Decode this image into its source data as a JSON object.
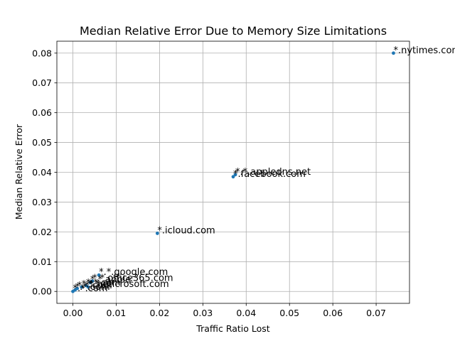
{
  "chart_data": {
    "type": "scatter",
    "title": "Median Relative Error Due to Memory Size Limitations",
    "xlabel": "Traffic Ratio Lost",
    "ylabel": "Median Relative Error",
    "xlim": [
      -0.0037,
      0.0777
    ],
    "ylim": [
      -0.004,
      0.084
    ],
    "xticks": [
      0.0,
      0.01,
      0.02,
      0.03,
      0.04,
      0.05,
      0.06,
      0.07
    ],
    "xtick_labels": [
      "0.00",
      "0.01",
      "0.02",
      "0.03",
      "0.04",
      "0.05",
      "0.06",
      "0.07"
    ],
    "yticks": [
      0.0,
      0.01,
      0.02,
      0.03,
      0.04,
      0.05,
      0.06,
      0.07,
      0.08
    ],
    "ytick_labels": [
      "0.00",
      "0.01",
      "0.02",
      "0.03",
      "0.04",
      "0.05",
      "0.06",
      "0.07",
      "0.08"
    ],
    "grid": true,
    "marker_color": "#1f77b4",
    "points": [
      {
        "x": 0.074,
        "y": 0.08,
        "label": "*.nytimes.com"
      },
      {
        "x": 0.0375,
        "y": 0.0392,
        "label": "*.*.appledns.net"
      },
      {
        "x": 0.037,
        "y": 0.0385,
        "label": "*.facebook.com"
      },
      {
        "x": 0.0195,
        "y": 0.0195,
        "label": "*.icloud.com"
      },
      {
        "x": 0.006,
        "y": 0.0055,
        "label": "*.*.google.com"
      },
      {
        "x": 0.0045,
        "y": 0.0035,
        "label": "*.*.office365.com"
      },
      {
        "x": 0.004,
        "y": 0.003,
        "label": "*.*.apple"
      },
      {
        "x": 0.003,
        "y": 0.002,
        "label": "*.*.com"
      },
      {
        "x": 0.0035,
        "y": 0.0015,
        "label": "*.*.microsoft.com"
      },
      {
        "x": 0.002,
        "y": 0.0015,
        "label": "*.*.net"
      },
      {
        "x": 0.001,
        "y": 0.001,
        "label": "*.*.com"
      },
      {
        "x": 0.0005,
        "y": 0.0005,
        "label": "*.*.com"
      },
      {
        "x": 0.0,
        "y": 0.0,
        "label": "*.*.com"
      }
    ]
  }
}
